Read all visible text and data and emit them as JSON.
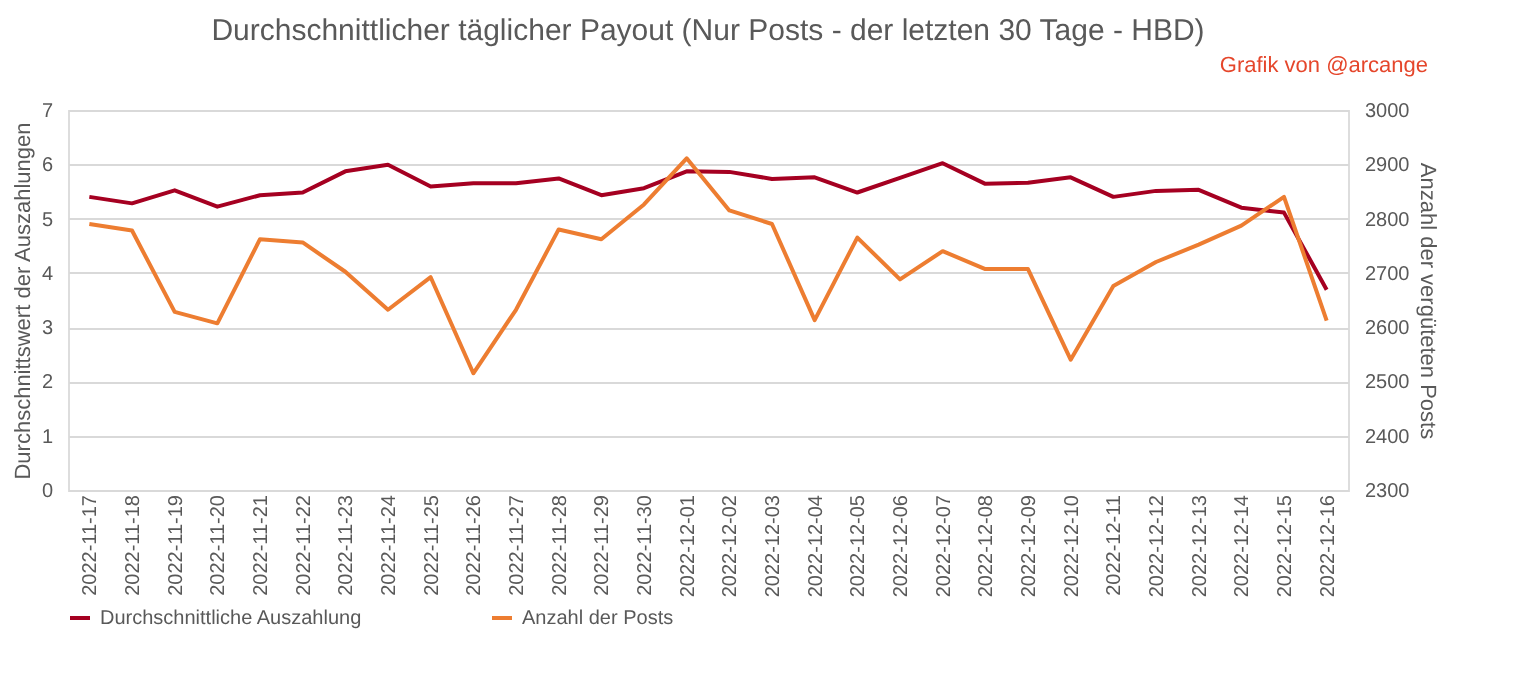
{
  "chart_data": {
    "type": "line",
    "title": "Durchschnittlicher täglicher Payout (Nur Posts - der letzten 30 Tage - HBD)",
    "annotations": [
      "Grafik von @arcange"
    ],
    "ylabel": "Durchschnittswert der Auszahlungen",
    "y2label": "Anzahl der vergüteten  Posts",
    "categories": [
      "2022-11-17",
      "2022-11-18",
      "2022-11-19",
      "2022-11-20",
      "2022-11-21",
      "2022-11-22",
      "2022-11-23",
      "2022-11-24",
      "2022-11-25",
      "2022-11-26",
      "2022-11-27",
      "2022-11-28",
      "2022-11-29",
      "2022-11-30",
      "2022-12-01",
      "2022-12-02",
      "2022-12-03",
      "2022-12-04",
      "2022-12-05",
      "2022-12-06",
      "2022-12-07",
      "2022-12-08",
      "2022-12-09",
      "2022-12-10",
      "2022-12-11",
      "2022-12-12",
      "2022-12-13",
      "2022-12-14",
      "2022-12-15",
      "2022-12-16"
    ],
    "series": [
      {
        "name": "Durchschnittliche Auszahlung",
        "color": "#a50021",
        "values": [
          5.4,
          5.28,
          5.52,
          5.22,
          5.43,
          5.48,
          5.87,
          5.99,
          5.59,
          5.65,
          5.65,
          5.74,
          5.43,
          5.56,
          5.87,
          5.86,
          5.73,
          5.76,
          5.48,
          5.75,
          6.02,
          5.64,
          5.66,
          5.76,
          5.4,
          5.51,
          5.53,
          5.2,
          5.11,
          3.69
        ]
      },
      {
        "name": "Anzahl der Posts",
        "color": "#ed7d31",
        "axis": "y2",
        "values": [
          2790,
          2778,
          2628,
          2607,
          2762,
          2756,
          2702,
          2632,
          2692,
          2515,
          2632,
          2780,
          2762,
          2826,
          2911,
          2815,
          2790,
          2613,
          2765,
          2688,
          2740,
          2707,
          2707,
          2540,
          2676,
          2720,
          2752,
          2787,
          2840,
          2612
        ]
      }
    ],
    "ylim": [
      0,
      7
    ],
    "yticks": [
      0,
      1,
      2,
      3,
      4,
      5,
      6,
      7
    ],
    "y2lim": [
      2300,
      3000
    ],
    "y2ticks": [
      2300,
      2400,
      2500,
      2600,
      2700,
      2800,
      2900,
      3000
    ],
    "grid": "y",
    "legend": "bottom",
    "line_style": "solid",
    "marker": "none"
  }
}
